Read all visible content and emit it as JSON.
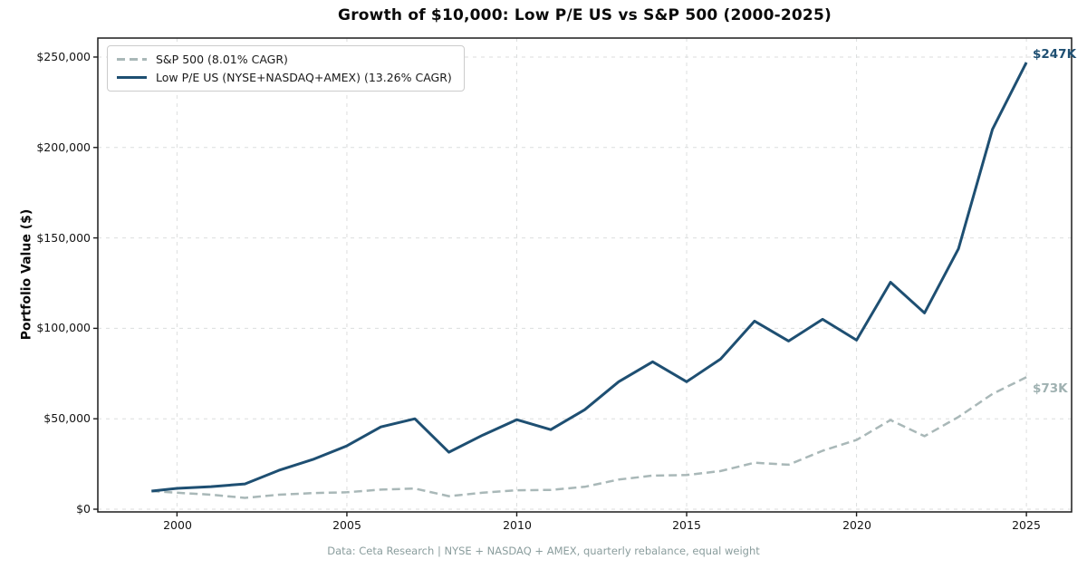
{
  "title": "Growth of $10,000: Low P/E US vs S&P 500 (2000-2025)",
  "ylabel": "Portfolio Value ($)",
  "caption": "Data: Ceta Research | NYSE + NASDAQ + AMEX, quarterly rebalance, equal weight",
  "legend": {
    "sp500": "S&P 500 (8.01% CAGR)",
    "lowpe": "Low P/E US (NYSE+NASDAQ+AMEX) (13.26% CAGR)"
  },
  "end_labels": {
    "lowpe": "$247K",
    "sp500": "$73K"
  },
  "y_tick_labels": [
    "$0",
    "$50,000",
    "$100,000",
    "$150,000",
    "$200,000",
    "$250,000"
  ],
  "x_tick_labels": [
    "2000",
    "2005",
    "2010",
    "2015",
    "2020",
    "2025"
  ],
  "colors": {
    "lowpe_line": "#1e4f72",
    "sp500_line": "#a9b8b8",
    "lowpe_label": "#1e4f72",
    "sp500_label": "#9fb1b1",
    "grid": "#dcdede",
    "spine": "#1c1c1c",
    "caption": "#8a9d9d"
  },
  "chart_data": {
    "type": "line",
    "title": "Growth of $10,000: Low P/E US vs S&P 500 (2000-2025)",
    "xlabel": "",
    "ylabel": "Portfolio Value ($)",
    "legend_position": "upper left",
    "grid": true,
    "x": [
      1999.25,
      2000,
      2001,
      2002,
      2003,
      2004,
      2005,
      2006,
      2007,
      2008,
      2009,
      2010,
      2011,
      2012,
      2013,
      2014,
      2015,
      2016,
      2017,
      2018,
      2019,
      2020,
      2021,
      2022,
      2023,
      2024,
      2025
    ],
    "series": [
      {
        "id": "sp500",
        "name": "S&P 500 (8.01% CAGR)",
        "color": "#a9b8b8",
        "dash": "9 5",
        "width": 2.5,
        "end_label": "$73K",
        "values": [
          10000,
          9100,
          8000,
          6250,
          8000,
          8900,
          9350,
          10800,
          11400,
          7200,
          9100,
          10450,
          10650,
          12400,
          16400,
          18600,
          18900,
          21100,
          25700,
          24600,
          32300,
          38300,
          49300,
          40400,
          51000,
          63700,
          73000
        ]
      },
      {
        "id": "lowpe",
        "name": "Low P/E US (NYSE+NASDAQ+AMEX) (13.26% CAGR)",
        "color": "#1e4f72",
        "dash": "",
        "width": 3,
        "end_label": "$247K",
        "values": [
          10000,
          11500,
          12500,
          14000,
          21500,
          27500,
          35000,
          45500,
          50000,
          31500,
          41000,
          49500,
          44000,
          55000,
          70500,
          81500,
          70500,
          83000,
          104000,
          93000,
          105000,
          93500,
          125500,
          108500,
          144000,
          210000,
          247000
        ]
      }
    ],
    "x_ticks": [
      2000,
      2005,
      2010,
      2015,
      2020,
      2025
    ],
    "y_ticks": [
      0,
      50000,
      100000,
      150000,
      200000,
      250000
    ],
    "x_range": [
      1997.67,
      2026.33
    ],
    "y_range": [
      -1500,
      260500
    ]
  }
}
